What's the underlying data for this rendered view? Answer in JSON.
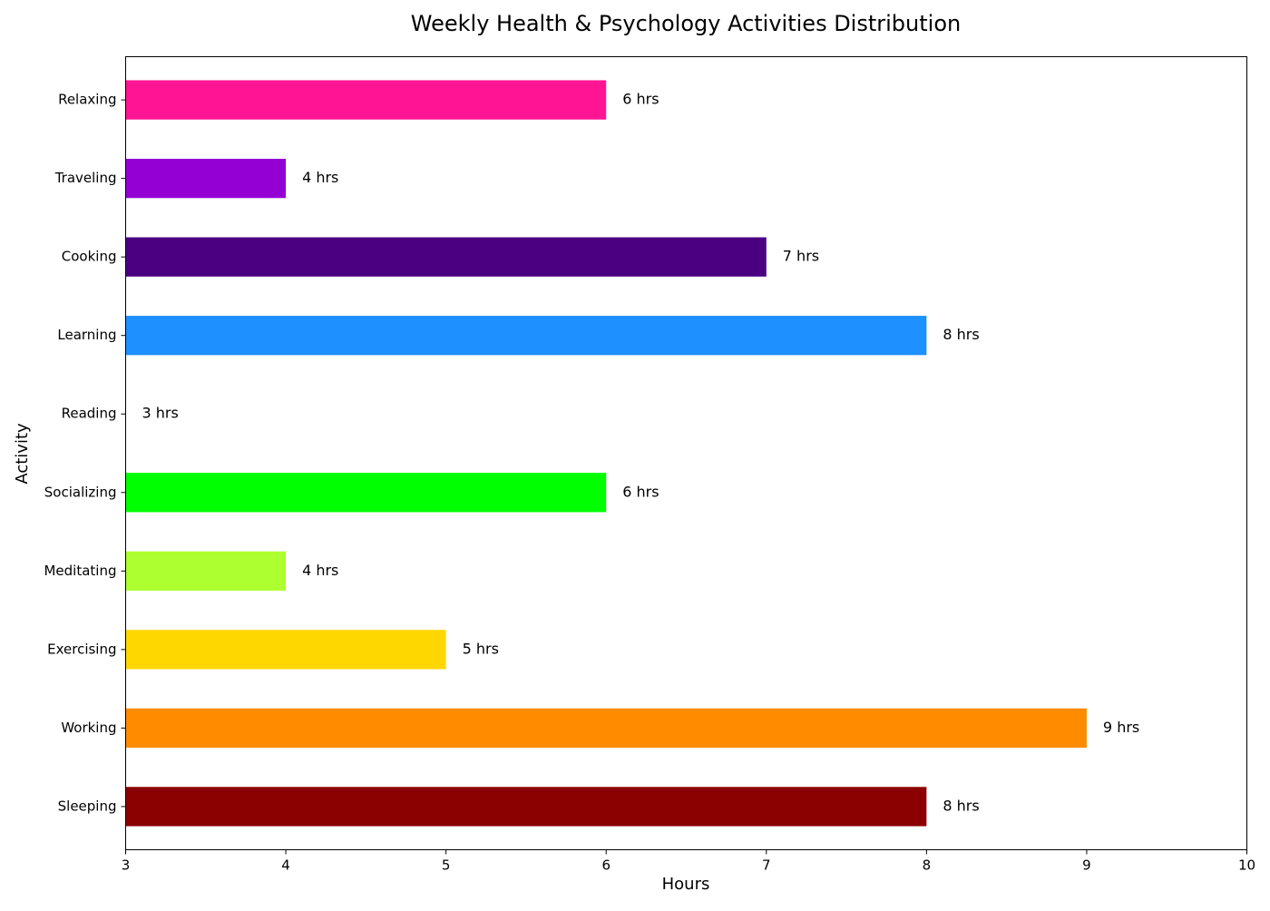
{
  "chart_data": {
    "type": "bar",
    "orientation": "horizontal",
    "title": "Weekly Health & Psychology Activities Distribution",
    "xlabel": "Hours",
    "ylabel": "Activity",
    "xlim": [
      3,
      10
    ],
    "xticks": [
      "3",
      "4",
      "5",
      "6",
      "7",
      "8",
      "9",
      "10"
    ],
    "grid": false,
    "legend": "none",
    "categories": [
      "Sleeping",
      "Working",
      "Exercising",
      "Meditating",
      "Socializing",
      "Reading",
      "Learning",
      "Cooking",
      "Traveling",
      "Relaxing"
    ],
    "values": [
      8,
      9,
      5,
      4,
      6,
      3,
      8,
      7,
      4,
      6
    ],
    "value_labels": [
      "8 hrs",
      "9 hrs",
      "5 hrs",
      "4 hrs",
      "6 hrs",
      "3 hrs",
      "8 hrs",
      "7 hrs",
      "4 hrs",
      "6 hrs"
    ],
    "colors": [
      "#8b0000",
      "#ff8c00",
      "#ffd700",
      "#adff2f",
      "#00ff00",
      "#00ced1",
      "#1e90ff",
      "#4b0082",
      "#9400d3",
      "#ff1493"
    ]
  }
}
